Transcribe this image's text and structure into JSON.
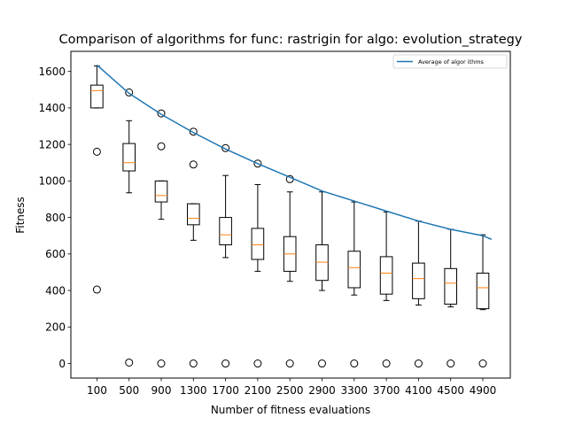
{
  "chart_data": {
    "type": "boxplot",
    "title": "Comparison of algorithms for func: rastrigin for algo: evolution_strategy",
    "xlabel": "Number of fitness evaluations",
    "ylabel": "Fitness",
    "ylim": [
      -80,
      1710
    ],
    "yticks": [
      0,
      200,
      400,
      600,
      800,
      1000,
      1200,
      1400,
      1600
    ],
    "categories": [
      "100",
      "500",
      "900",
      "1300",
      "1700",
      "2100",
      "2500",
      "2900",
      "3300",
      "3700",
      "4100",
      "4500",
      "4900"
    ],
    "boxes": [
      {
        "whislo": 1400,
        "q1": 1400,
        "med": 1495,
        "q3": 1525,
        "whishi": 1630,
        "fliers": [
          1160,
          405
        ]
      },
      {
        "whislo": 935,
        "q1": 1055,
        "med": 1100,
        "q3": 1205,
        "whishi": 1330,
        "fliers": [
          1485,
          5
        ]
      },
      {
        "whislo": 790,
        "q1": 885,
        "med": 920,
        "q3": 1000,
        "whishi": 1000,
        "fliers": [
          1370,
          1190,
          0
        ]
      },
      {
        "whislo": 675,
        "q1": 760,
        "med": 795,
        "q3": 875,
        "whishi": 875,
        "fliers": [
          1270,
          1090,
          0
        ]
      },
      {
        "whislo": 580,
        "q1": 650,
        "med": 705,
        "q3": 800,
        "whishi": 1030,
        "fliers": [
          1180,
          0
        ]
      },
      {
        "whislo": 505,
        "q1": 570,
        "med": 650,
        "q3": 740,
        "whishi": 980,
        "fliers": [
          1095,
          0
        ]
      },
      {
        "whislo": 450,
        "q1": 505,
        "med": 600,
        "q3": 695,
        "whishi": 940,
        "fliers": [
          1010,
          0
        ]
      },
      {
        "whislo": 400,
        "q1": 455,
        "med": 555,
        "q3": 650,
        "whishi": 940,
        "fliers": [
          0
        ]
      },
      {
        "whislo": 375,
        "q1": 415,
        "med": 525,
        "q3": 615,
        "whishi": 885,
        "fliers": [
          0
        ]
      },
      {
        "whislo": 345,
        "q1": 380,
        "med": 495,
        "q3": 585,
        "whishi": 830,
        "fliers": [
          0
        ]
      },
      {
        "whislo": 320,
        "q1": 355,
        "med": 465,
        "q3": 550,
        "whishi": 780,
        "fliers": [
          0
        ]
      },
      {
        "whislo": 310,
        "q1": 325,
        "med": 440,
        "q3": 520,
        "whishi": 735,
        "fliers": [
          0
        ]
      },
      {
        "whislo": 295,
        "q1": 300,
        "med": 415,
        "q3": 495,
        "whishi": 705,
        "fliers": [
          0
        ]
      }
    ],
    "series": [
      {
        "name": "Average of algor ithms",
        "type": "line",
        "color": "#1f77b4",
        "x": [
          "100",
          "500",
          "900",
          "1300",
          "1700",
          "2100",
          "2500",
          "2900",
          "3300",
          "3700",
          "4100",
          "4500",
          "4900"
        ],
        "values": [
          1635,
          1480,
          1365,
          1265,
          1175,
          1095,
          1020,
          945,
          890,
          835,
          780,
          735,
          700
        ],
        "end_value": 680
      }
    ],
    "box_color": "#000000",
    "median_color": "#ff7f0e",
    "legend_position": "top-right",
    "grid": false
  }
}
